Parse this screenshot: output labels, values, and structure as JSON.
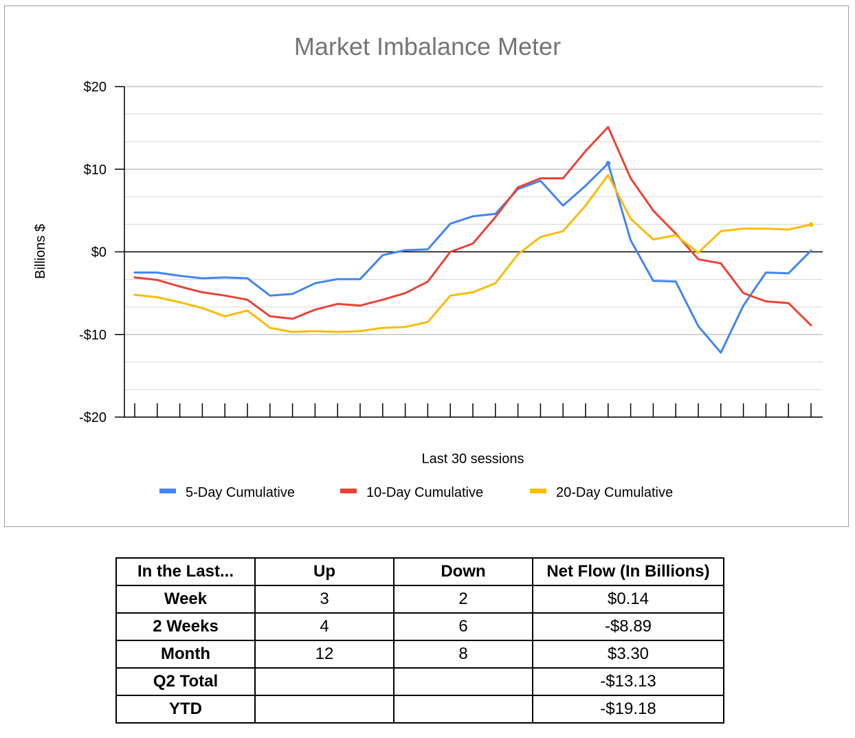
{
  "chart_data": {
    "type": "line",
    "title": "Market Imbalance Meter",
    "xlabel": "Last 30 sessions",
    "ylabel": "Billions $",
    "ylim": [
      -20,
      20
    ],
    "y_ticks": [
      {
        "value": 20,
        "label": "$20"
      },
      {
        "value": 10,
        "label": "$10"
      },
      {
        "value": 0,
        "label": "$0"
      },
      {
        "value": -10,
        "label": "-$10"
      },
      {
        "value": -20,
        "label": "-$20"
      }
    ],
    "n_points": 31,
    "grid": true,
    "legend_position": "bottom",
    "series": [
      {
        "name": "5-Day Cumulative",
        "color": "#4285f4",
        "values": [
          -2.5,
          -2.5,
          -2.9,
          -3.2,
          -3.1,
          -3.2,
          -5.3,
          -5.1,
          -3.8,
          -3.3,
          -3.3,
          -0.4,
          0.2,
          0.3,
          3.4,
          4.3,
          4.6,
          7.6,
          8.6,
          5.6,
          8.0,
          10.7,
          1.4,
          -3.5,
          -3.6,
          -9.0,
          -12.2,
          -6.5,
          -2.5,
          -2.6,
          0.14
        ]
      },
      {
        "name": "10-Day Cumulative",
        "color": "#ea4335",
        "values": [
          -3.1,
          -3.4,
          -4.2,
          -4.9,
          -5.3,
          -5.8,
          -7.8,
          -8.1,
          -7.0,
          -6.3,
          -6.5,
          -5.8,
          -5.0,
          -3.6,
          0.0,
          1.0,
          4.2,
          7.8,
          8.9,
          8.9,
          12.2,
          15.1,
          8.9,
          5.0,
          2.2,
          -0.9,
          -1.4,
          -5.0,
          -6.0,
          -6.2,
          -8.89
        ]
      },
      {
        "name": "20-Day Cumulative",
        "color": "#fbbc04",
        "values": [
          -5.2,
          -5.5,
          -6.1,
          -6.8,
          -7.8,
          -7.1,
          -9.2,
          -9.7,
          -9.6,
          -9.7,
          -9.6,
          -9.2,
          -9.1,
          -8.5,
          -5.3,
          -4.9,
          -3.8,
          -0.3,
          1.8,
          2.5,
          5.6,
          9.3,
          4.0,
          1.5,
          2.0,
          -0.1,
          2.5,
          2.8,
          2.8,
          2.7,
          3.3
        ]
      }
    ]
  },
  "table": {
    "headers": [
      "In the Last...",
      "Up",
      "Down",
      "Net Flow (In Billions)"
    ],
    "rows": [
      [
        "Week",
        "3",
        "2",
        "$0.14"
      ],
      [
        "2 Weeks",
        "4",
        "6",
        "-$8.89"
      ],
      [
        "Month",
        "12",
        "8",
        "$3.30"
      ],
      [
        "Q2 Total",
        "",
        "",
        "-$13.13"
      ],
      [
        "YTD",
        "",
        "",
        "-$19.18"
      ]
    ]
  }
}
